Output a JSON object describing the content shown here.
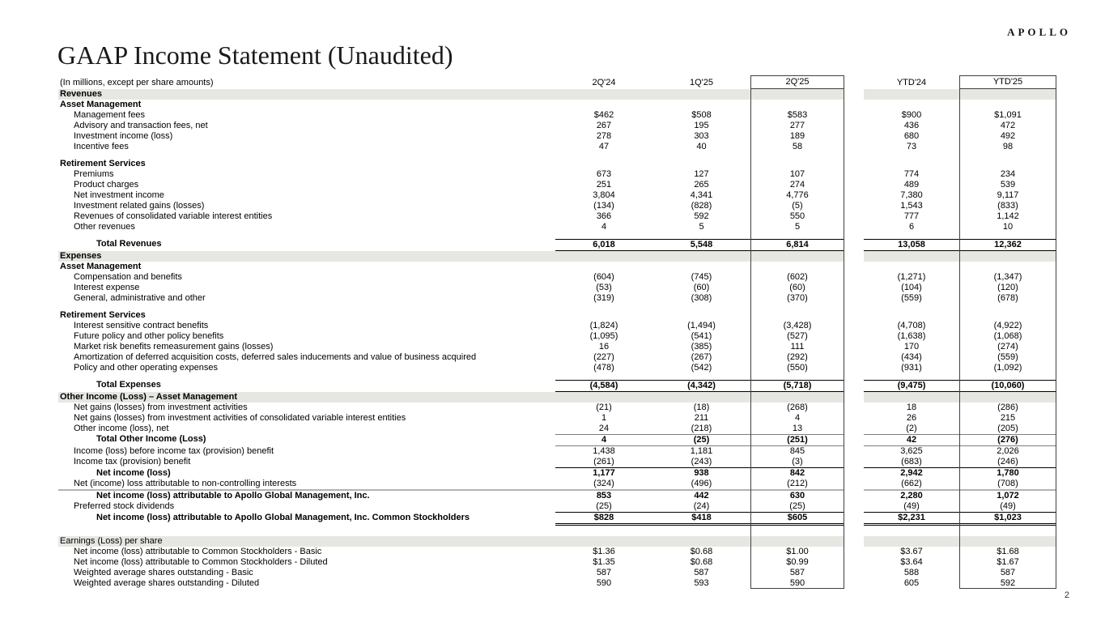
{
  "logo": "APOLLO",
  "title": "GAAP Income Statement (Unaudited)",
  "page_number": "2",
  "colors": {
    "section_band": "#e7e7e2",
    "highlight_box_border": "#404040",
    "gray_rule": "#b3b3b3"
  },
  "table": {
    "units_note": "(In millions, except per share amounts)",
    "columns": [
      "2Q'24",
      "1Q'25",
      "2Q'25",
      "YTD'24",
      "YTD'25"
    ],
    "highlighted_columns": [
      "2Q'25",
      "YTD'25"
    ],
    "rows": [
      {
        "type": "section",
        "indent": 0,
        "label": "Revenues",
        "values": []
      },
      {
        "type": "subhead",
        "indent": 0,
        "label": "Asset Management",
        "values": []
      },
      {
        "type": "item",
        "indent": 1,
        "label": "Management fees",
        "values": [
          "$462",
          "$508",
          "$583",
          "$900",
          "$1,091"
        ]
      },
      {
        "type": "item",
        "indent": 1,
        "label": "Advisory and transaction fees, net",
        "values": [
          "267",
          "195",
          "277",
          "436",
          "472"
        ]
      },
      {
        "type": "item",
        "indent": 1,
        "label": "Investment income (loss)",
        "values": [
          "278",
          "303",
          "189",
          "680",
          "492"
        ]
      },
      {
        "type": "item",
        "indent": 1,
        "label": "Incentive fees",
        "values": [
          "47",
          "40",
          "58",
          "73",
          "98"
        ]
      },
      {
        "type": "spacer"
      },
      {
        "type": "subhead",
        "indent": 0,
        "label": "Retirement Services",
        "values": []
      },
      {
        "type": "item",
        "indent": 1,
        "label": "Premiums",
        "values": [
          "673",
          "127",
          "107",
          "774",
          "234"
        ]
      },
      {
        "type": "item",
        "indent": 1,
        "label": "Product charges",
        "values": [
          "251",
          "265",
          "274",
          "489",
          "539"
        ]
      },
      {
        "type": "item",
        "indent": 1,
        "label": "Net investment income",
        "values": [
          "3,804",
          "4,341",
          "4,776",
          "7,380",
          "9,117"
        ]
      },
      {
        "type": "item",
        "indent": 1,
        "label": "Investment related gains (losses)",
        "values": [
          "(134)",
          "(828)",
          "(5)",
          "1,543",
          "(833)"
        ]
      },
      {
        "type": "item",
        "indent": 1,
        "label": "Revenues of consolidated variable interest entities",
        "values": [
          "366",
          "592",
          "550",
          "777",
          "1,142"
        ]
      },
      {
        "type": "item",
        "indent": 1,
        "label": "Other revenues",
        "values": [
          "4",
          "5",
          "5",
          "6",
          "10"
        ]
      },
      {
        "type": "spacer"
      },
      {
        "type": "total",
        "indent": 2,
        "label": "Total Revenues",
        "values": [
          "6,018",
          "5,548",
          "6,814",
          "13,058",
          "12,362"
        ]
      },
      {
        "type": "section",
        "indent": 0,
        "label": "Expenses",
        "values": []
      },
      {
        "type": "subhead",
        "indent": 0,
        "label": "Asset Management",
        "values": []
      },
      {
        "type": "item",
        "indent": 1,
        "label": "Compensation and benefits",
        "values": [
          "(604)",
          "(745)",
          "(602)",
          "(1,271)",
          "(1,347)"
        ]
      },
      {
        "type": "item",
        "indent": 1,
        "label": "Interest expense",
        "values": [
          "(53)",
          "(60)",
          "(60)",
          "(104)",
          "(120)"
        ]
      },
      {
        "type": "item",
        "indent": 1,
        "label": "General, administrative and other",
        "values": [
          "(319)",
          "(308)",
          "(370)",
          "(559)",
          "(678)"
        ]
      },
      {
        "type": "spacer"
      },
      {
        "type": "subhead",
        "indent": 0,
        "label": "Retirement Services",
        "values": []
      },
      {
        "type": "item",
        "indent": 1,
        "label": "Interest sensitive contract benefits",
        "values": [
          "(1,824)",
          "(1,494)",
          "(3,428)",
          "(4,708)",
          "(4,922)"
        ]
      },
      {
        "type": "item",
        "indent": 1,
        "label": "Future policy and other policy benefits",
        "values": [
          "(1,095)",
          "(541)",
          "(527)",
          "(1,638)",
          "(1,068)"
        ]
      },
      {
        "type": "item",
        "indent": 1,
        "label": "Market risk benefits remeasurement gains (losses)",
        "values": [
          "16",
          "(385)",
          "111",
          "170",
          "(274)"
        ]
      },
      {
        "type": "item",
        "indent": 1,
        "label": "Amortization of deferred acquisition costs, deferred sales inducements and value of business acquired",
        "values": [
          "(227)",
          "(267)",
          "(292)",
          "(434)",
          "(559)"
        ]
      },
      {
        "type": "item",
        "indent": 1,
        "label": "Policy and other operating expenses",
        "values": [
          "(478)",
          "(542)",
          "(550)",
          "(931)",
          "(1,092)"
        ]
      },
      {
        "type": "spacer"
      },
      {
        "type": "total",
        "indent": 2,
        "label": "Total Expenses",
        "values": [
          "(4,584)",
          "(4,342)",
          "(5,718)",
          "(9,475)",
          "(10,060)"
        ]
      },
      {
        "type": "section",
        "indent": 0,
        "label": "Other Income (Loss) – Asset Management",
        "values": []
      },
      {
        "type": "item",
        "indent": 1,
        "label": "Net gains (losses) from investment activities",
        "values": [
          "(21)",
          "(18)",
          "(268)",
          "18",
          "(286)"
        ]
      },
      {
        "type": "item",
        "indent": 1,
        "label": "Net gains (losses) from investment activities of consolidated variable interest entities",
        "values": [
          "1",
          "211",
          "4",
          "26",
          "215"
        ]
      },
      {
        "type": "item",
        "indent": 1,
        "label": "Other income (loss), net",
        "values": [
          "24",
          "(218)",
          "13",
          "(2)",
          "(205)"
        ]
      },
      {
        "type": "item-b",
        "indent": 2,
        "rule": "oi-tb",
        "label": "Total Other Income (Loss)",
        "values": [
          "4",
          "(25)",
          "(251)",
          "42",
          "(276)"
        ]
      },
      {
        "type": "item",
        "indent": 1,
        "label": "Income (loss) before income tax (provision) benefit",
        "values": [
          "1,438",
          "1,181",
          "845",
          "3,625",
          "2,026"
        ]
      },
      {
        "type": "item",
        "indent": 1,
        "rule": "num-b",
        "label": "Income tax (provision) benefit",
        "values": [
          "(261)",
          "(243)",
          "(3)",
          "(683)",
          "(246)"
        ]
      },
      {
        "type": "item-b",
        "indent": 2,
        "label": "Net income (loss)",
        "values": [
          "1,177",
          "938",
          "842",
          "2,942",
          "1,780"
        ]
      },
      {
        "type": "item",
        "indent": 1,
        "rule": "full-b-gray",
        "label": "Net (income) loss attributable to non-controlling interests",
        "values": [
          "(324)",
          "(496)",
          "(212)",
          "(662)",
          "(708)"
        ]
      },
      {
        "type": "item-b",
        "indent": 2,
        "label": "Net income (loss) attributable to Apollo Global Management, Inc.",
        "values": [
          "853",
          "442",
          "630",
          "2,280",
          "1,072"
        ]
      },
      {
        "type": "item",
        "indent": 1,
        "rule": "num-b",
        "label": "Preferred stock dividends",
        "values": [
          "(25)",
          "(24)",
          "(25)",
          "(49)",
          "(49)"
        ]
      },
      {
        "type": "item-b",
        "indent": 2,
        "rule": "num-dbl",
        "label": "Net income (loss) attributable to Apollo Global Management, Inc. Common Stockholders",
        "values": [
          "$828",
          "$418",
          "$605",
          "$2,231",
          "$1,023"
        ]
      },
      {
        "type": "spacer",
        "size": "lg"
      },
      {
        "type": "section",
        "light": true,
        "indent": 0,
        "label": "Earnings (Loss) per share",
        "values": []
      },
      {
        "type": "item",
        "indent": 1,
        "label": "Net income (loss) attributable to Common Stockholders - Basic",
        "values": [
          "$1.36",
          "$0.68",
          "$1.00",
          "$3.67",
          "$1.68"
        ]
      },
      {
        "type": "item",
        "indent": 1,
        "label": "Net income (loss) attributable to Common Stockholders - Diluted",
        "values": [
          "$1.35",
          "$0.68",
          "$0.99",
          "$3.64",
          "$1.67"
        ]
      },
      {
        "type": "item",
        "indent": 1,
        "label": "Weighted average shares outstanding - Basic",
        "values": [
          "587",
          "587",
          "587",
          "588",
          "587"
        ]
      },
      {
        "type": "item",
        "indent": 1,
        "label": "Weighted average shares outstanding - Diluted",
        "values": [
          "590",
          "593",
          "590",
          "605",
          "592"
        ]
      }
    ]
  }
}
